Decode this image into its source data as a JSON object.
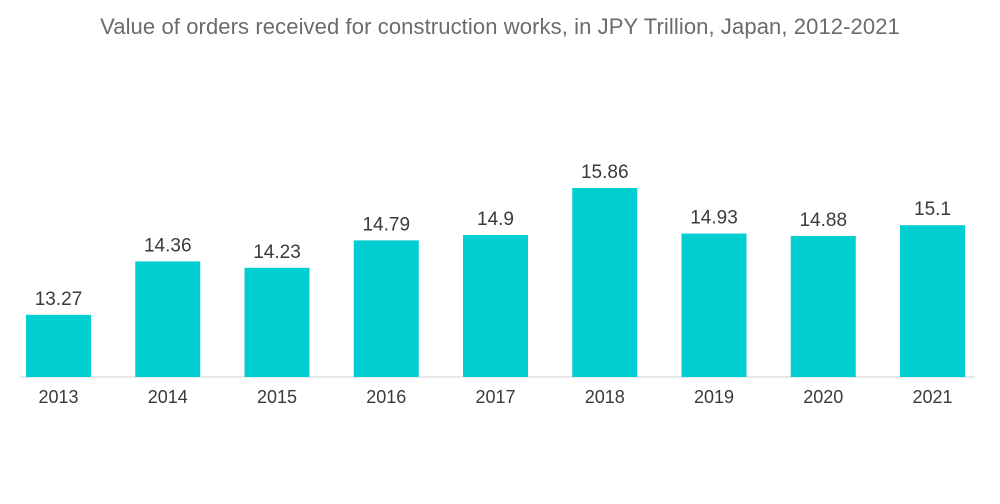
{
  "chart_data": {
    "type": "bar",
    "title": "Value of orders received for construction works, in JPY Trillion, Japan, 2012-2021",
    "categories": [
      "2013",
      "2014",
      "2015",
      "2016",
      "2017",
      "2018",
      "2019",
      "2020",
      "2021"
    ],
    "values": [
      13.27,
      14.36,
      14.23,
      14.79,
      14.9,
      15.86,
      14.93,
      14.88,
      15.1
    ],
    "data_labels": [
      "13.27",
      "14.36",
      "14.23",
      "14.79",
      "14.9",
      "15.86",
      "14.93",
      "14.88",
      "15.1"
    ],
    "xlabel": "",
    "ylabel": "",
    "ylim": [
      0,
      15.86
    ],
    "grid": false,
    "legend": "none",
    "bar_color": "#00ced1"
  }
}
